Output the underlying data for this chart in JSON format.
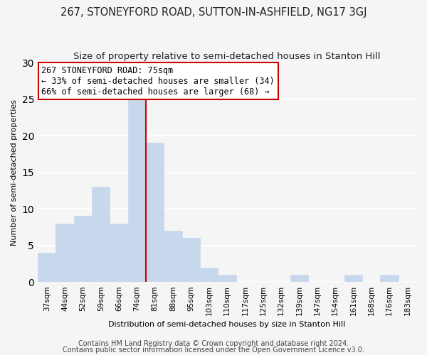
{
  "title": "267, STONEYFORD ROAD, SUTTON-IN-ASHFIELD, NG17 3GJ",
  "subtitle": "Size of property relative to semi-detached houses in Stanton Hill",
  "xlabel": "Distribution of semi-detached houses by size in Stanton Hill",
  "ylabel": "Number of semi-detached properties",
  "categories": [
    "37sqm",
    "44sqm",
    "52sqm",
    "59sqm",
    "66sqm",
    "74sqm",
    "81sqm",
    "88sqm",
    "95sqm",
    "103sqm",
    "110sqm",
    "117sqm",
    "125sqm",
    "132sqm",
    "139sqm",
    "147sqm",
    "154sqm",
    "161sqm",
    "168sqm",
    "176sqm",
    "183sqm"
  ],
  "values": [
    4,
    8,
    9,
    13,
    8,
    25,
    19,
    7,
    6,
    2,
    1,
    0,
    0,
    0,
    1,
    0,
    0,
    1,
    0,
    1,
    0
  ],
  "bar_color": "#c8d8ec",
  "bar_edge_color": "#c8d8ec",
  "property_line_color": "#cc0000",
  "annotation_line1": "267 STONEYFORD ROAD: 75sqm",
  "annotation_line2": "← 33% of semi-detached houses are smaller (34)",
  "annotation_line3": "66% of semi-detached houses are larger (68) →",
  "annotation_box_edge": "#cc0000",
  "annotation_box_face": "#ffffff",
  "ylim": [
    0,
    30
  ],
  "yticks": [
    0,
    5,
    10,
    15,
    20,
    25,
    30
  ],
  "footer1": "Contains HM Land Registry data © Crown copyright and database right 2024.",
  "footer2": "Contains public sector information licensed under the Open Government Licence v3.0.",
  "background_color": "#f5f5f5",
  "plot_background": "#f5f5f5",
  "grid_color": "#ffffff",
  "title_fontsize": 10.5,
  "subtitle_fontsize": 9.5,
  "axis_fontsize": 8,
  "tick_fontsize": 7.5,
  "footer_fontsize": 7,
  "annotation_fontsize": 8.5,
  "line_x_index": 5.0
}
